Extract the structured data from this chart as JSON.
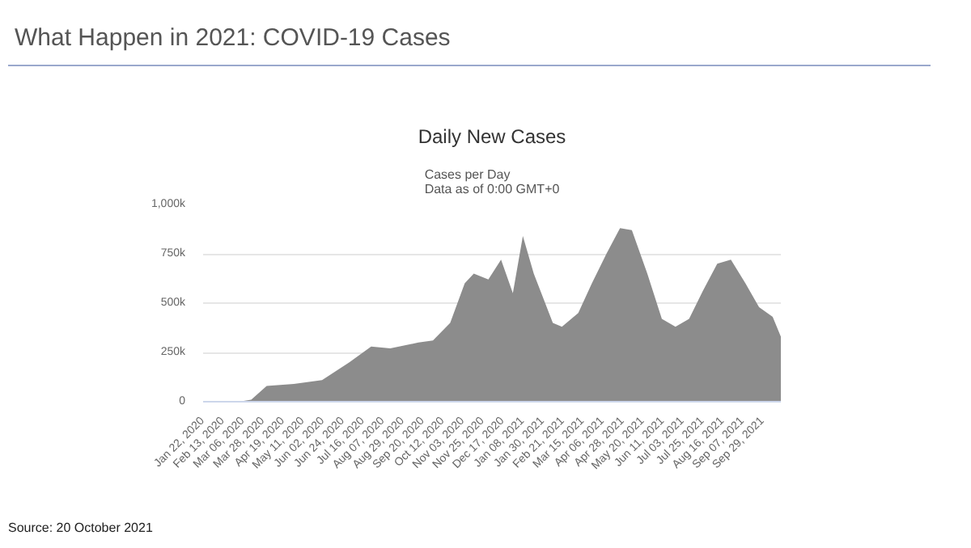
{
  "chart_data": {
    "type": "area",
    "title": "Daily New Cases",
    "subtitle": "Cases per Day\nData as of 0:00 GMT+0",
    "annotations": [
      "What Happen in 2021: COVID-19 Cases",
      "Source: 20 October 2021"
    ],
    "x": [
      "2020-01-22",
      "2020-03-01",
      "2020-03-15",
      "2020-04-01",
      "2020-05-01",
      "2020-06-01",
      "2020-07-01",
      "2020-07-25",
      "2020-08-15",
      "2020-09-15",
      "2020-10-01",
      "2020-10-20",
      "2020-11-05",
      "2020-11-15",
      "2020-12-01",
      "2020-12-15",
      "2020-12-28",
      "2021-01-08",
      "2021-01-20",
      "2021-02-10",
      "2021-02-20",
      "2021-03-10",
      "2021-03-25",
      "2021-04-10",
      "2021-04-25",
      "2021-05-08",
      "2021-05-25",
      "2021-06-10",
      "2021-06-25",
      "2021-07-10",
      "2021-07-25",
      "2021-08-10",
      "2021-08-25",
      "2021-09-10",
      "2021-09-25",
      "2021-10-10",
      "2021-10-19"
    ],
    "series": [
      {
        "color": "#8c8c8c",
        "values": [
          0,
          0,
          10000,
          80000,
          90000,
          110000,
          200000,
          280000,
          270000,
          300000,
          310000,
          400000,
          600000,
          650000,
          620000,
          720000,
          550000,
          840000,
          650000,
          400000,
          380000,
          450000,
          600000,
          750000,
          880000,
          870000,
          650000,
          420000,
          380000,
          420000,
          560000,
          700000,
          720000,
          600000,
          480000,
          430000,
          330000
        ]
      }
    ],
    "xlim": [
      "2020-01-22",
      "2021-10-19"
    ],
    "xticks": [
      {
        "value": "2020-01-22",
        "label": "Jan 22, 2020"
      },
      {
        "value": "2020-02-13",
        "label": "Feb 13, 2020"
      },
      {
        "value": "2020-03-06",
        "label": "Mar 06, 2020"
      },
      {
        "value": "2020-03-28",
        "label": "Mar 28, 2020"
      },
      {
        "value": "2020-04-19",
        "label": "Apr 19, 2020"
      },
      {
        "value": "2020-05-11",
        "label": "May 11, 2020"
      },
      {
        "value": "2020-06-02",
        "label": "Jun 02, 2020"
      },
      {
        "value": "2020-06-24",
        "label": "Jun 24, 2020"
      },
      {
        "value": "2020-07-16",
        "label": "Jul 16, 2020"
      },
      {
        "value": "2020-08-07",
        "label": "Aug 07, 2020"
      },
      {
        "value": "2020-08-29",
        "label": "Aug 29, 2020"
      },
      {
        "value": "2020-09-20",
        "label": "Sep 20, 2020"
      },
      {
        "value": "2020-10-12",
        "label": "Oct 12, 2020"
      },
      {
        "value": "2020-11-03",
        "label": "Nov 03, 2020"
      },
      {
        "value": "2020-11-25",
        "label": "Nov 25, 2020"
      },
      {
        "value": "2020-12-17",
        "label": "Dec 17, 2020"
      },
      {
        "value": "2021-01-08",
        "label": "Jan 08, 2021"
      },
      {
        "value": "2021-01-30",
        "label": "Jan 30, 2021"
      },
      {
        "value": "2021-02-21",
        "label": "Feb 21, 2021"
      },
      {
        "value": "2021-03-15",
        "label": "Mar 15, 2021"
      },
      {
        "value": "2021-04-06",
        "label": "Apr 06, 2021"
      },
      {
        "value": "2021-04-28",
        "label": "Apr 28, 2021"
      },
      {
        "value": "2021-05-20",
        "label": "May 20, 2021"
      },
      {
        "value": "2021-06-11",
        "label": "Jun 11, 2021"
      },
      {
        "value": "2021-07-03",
        "label": "Jul 03, 2021"
      },
      {
        "value": "2021-07-25",
        "label": "Jul 25, 2021"
      },
      {
        "value": "2021-08-16",
        "label": "Aug 16, 2021"
      },
      {
        "value": "2021-09-07",
        "label": "Sep 07, 2021"
      },
      {
        "value": "2021-09-29",
        "label": "Sep 29, 2021"
      }
    ],
    "ylim": [
      0,
      1000000
    ],
    "yticks": [
      0,
      {
        "value": 250000,
        "label": "250k"
      },
      {
        "value": 500000,
        "label": "500k"
      },
      {
        "value": 750000,
        "label": "750k"
      },
      {
        "value": 1000000,
        "label": "1,000k"
      }
    ],
    "grid": "y"
  }
}
